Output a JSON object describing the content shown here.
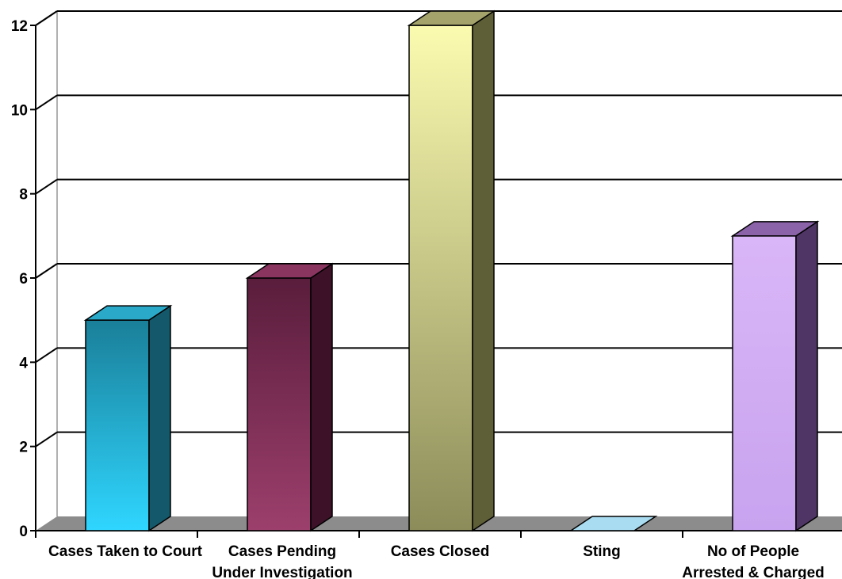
{
  "chart_data": {
    "type": "bar",
    "style": "3d-column",
    "categories": [
      [
        "Cases Taken to Court"
      ],
      [
        "Cases Pending",
        "Under Investigation"
      ],
      [
        "Cases Closed"
      ],
      [
        "Sting"
      ],
      [
        "No of People",
        "Arrested & Charged"
      ]
    ],
    "values": [
      5,
      6,
      12,
      0,
      7
    ],
    "ylim": [
      0,
      12
    ],
    "yticks": [
      0,
      2,
      4,
      6,
      8,
      10,
      12
    ],
    "grid": true,
    "colors": [
      {
        "front_top": "#1a7f99",
        "front_bottom": "#2fd6ff",
        "side": "#13596b",
        "top": "#2aa9c9"
      },
      {
        "front_top": "#5a1d3c",
        "front_bottom": "#9c3f6c",
        "side": "#3d1228",
        "top": "#8a3560"
      },
      {
        "front_top": "#fbfbb0",
        "front_bottom": "#8c8c5a",
        "side": "#5e5e37",
        "top": "#a3a36b"
      },
      {
        "front_top": "#9fd3ea",
        "front_bottom": "#9fd3ea",
        "side": "#7ab3cc",
        "top": "#a9dcf0"
      },
      {
        "front_top": "#d9b6f7",
        "front_bottom": "#c8a3ef",
        "side": "#4e3566",
        "top": "#8a63a8"
      }
    ],
    "floor_color": "#8c8c8c"
  }
}
